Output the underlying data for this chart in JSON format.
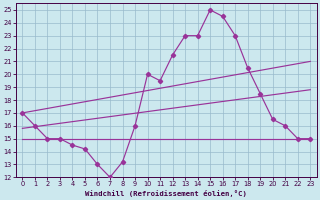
{
  "bg_color": "#cce8ee",
  "line_color": "#993399",
  "grid_color": "#99bbcc",
  "xlabel": "Windchill (Refroidissement éolien,°C)",
  "xlim": [
    -0.5,
    23.5
  ],
  "ylim": [
    12,
    25.5
  ],
  "xticks": [
    0,
    1,
    2,
    3,
    4,
    5,
    6,
    7,
    8,
    9,
    10,
    11,
    12,
    13,
    14,
    15,
    16,
    17,
    18,
    19,
    20,
    21,
    22,
    23
  ],
  "yticks": [
    12,
    13,
    14,
    15,
    16,
    17,
    18,
    19,
    20,
    21,
    22,
    23,
    24,
    25
  ],
  "curve_x": [
    0,
    1,
    2,
    3,
    4,
    5,
    6,
    7,
    8,
    9,
    10,
    11,
    12,
    13,
    14,
    15,
    16,
    17,
    18,
    19,
    20,
    21,
    22,
    23
  ],
  "curve_y": [
    17,
    16,
    15,
    15,
    14.5,
    14.2,
    13,
    12,
    13.2,
    16,
    20,
    19.5,
    21.5,
    23,
    23,
    25,
    24.5,
    23,
    20.5,
    18.5,
    16.5,
    16,
    15,
    15
  ],
  "trend1_x": [
    0,
    23
  ],
  "trend1_y": [
    17.0,
    21.0
  ],
  "trend2_x": [
    0,
    23
  ],
  "trend2_y": [
    15.8,
    18.8
  ],
  "trend3_x": [
    0,
    23
  ],
  "trend3_y": [
    15.0,
    15.0
  ]
}
